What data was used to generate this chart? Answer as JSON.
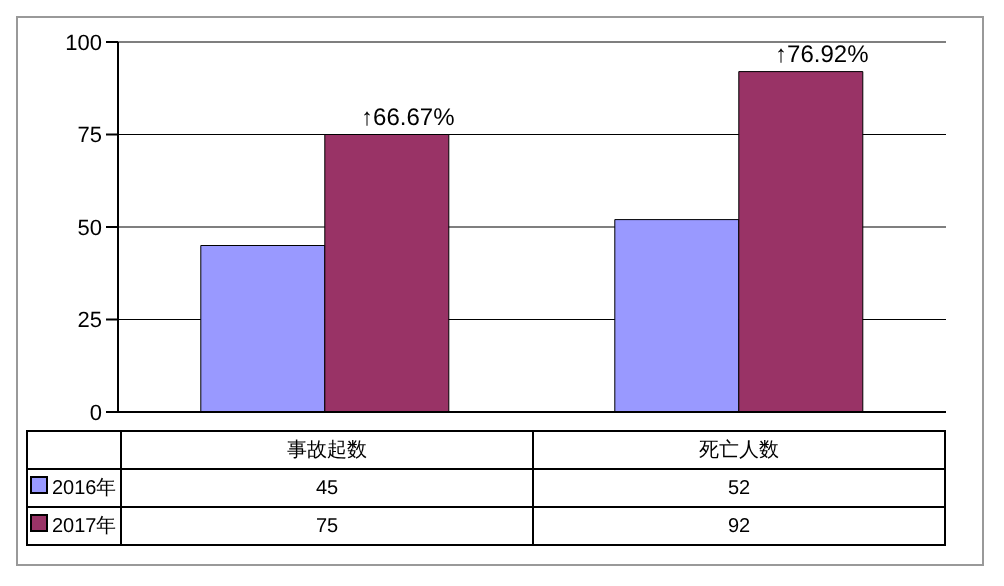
{
  "chart_data": {
    "type": "bar",
    "categories": [
      "事故起数",
      "死亡人数"
    ],
    "series": [
      {
        "name": "2016年",
        "color": "#9999ff",
        "values": [
          45,
          52
        ]
      },
      {
        "name": "2017年",
        "color": "#993366",
        "values": [
          75,
          92
        ]
      }
    ],
    "ylim": [
      0,
      100
    ],
    "yticks": [
      0,
      25,
      50,
      75,
      100
    ],
    "grid": "y",
    "legend": "bottom",
    "data_labels": true,
    "annotations": [
      {
        "text": "↑66.67%",
        "x": "事故起数",
        "y": 75
      },
      {
        "text": "↑76.92%",
        "x": "死亡人数",
        "y": 92
      }
    ]
  }
}
